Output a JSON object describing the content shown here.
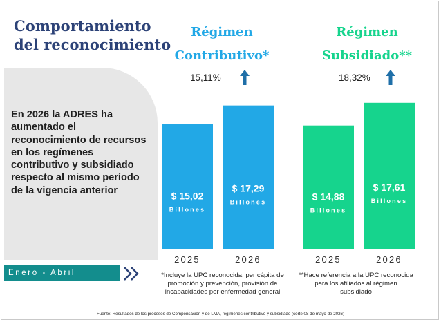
{
  "title": "Comportamiento del reconocimiento",
  "summary": "En 2026 la ADRES ha aumentado el reconocimiento de recursos en los regímenes contributivo y subsidiado respecto al mismo período de la vigencia anterior",
  "period": "Enero - Abril",
  "source": "Fuente: Resultados de los procesos de Compensación y de LMA, regímenes contributivo y subsidiado (corte 08 de mayo de 2026)",
  "colors": {
    "title": "#2c4277",
    "contributivo": "#22a8e6",
    "subsidiado": "#16d48d",
    "period_bar": "#138d8d",
    "arrow": "#1f6fa8"
  },
  "icons": [
    "up-arrow-icon",
    "double-chevron-right-icon"
  ],
  "chart_data": [
    {
      "type": "bar",
      "title_line1": "Régimen",
      "title_line2": "Contributivo*",
      "categories": [
        "2025",
        "2026"
      ],
      "values": [
        15.02,
        17.29
      ],
      "value_labels": [
        "$ 15,02",
        "$ 17,29"
      ],
      "unit_label": "Billones",
      "growth": "15,11%",
      "growth_direction": "up",
      "note": "*Incluye la UPC reconocida, per cápita de promoción y prevención, provisión de incapacidades por enfermedad general"
    },
    {
      "type": "bar",
      "title_line1": "Régimen",
      "title_line2": "Subsidiado**",
      "categories": [
        "2025",
        "2026"
      ],
      "values": [
        14.88,
        17.61
      ],
      "value_labels": [
        "$ 14,88",
        "$ 17,61"
      ],
      "unit_label": "Billones",
      "growth": "18,32%",
      "growth_direction": "up",
      "note": "**Hace referencia a la UPC reconocida para los afiliados al régimen subsidiado"
    }
  ]
}
